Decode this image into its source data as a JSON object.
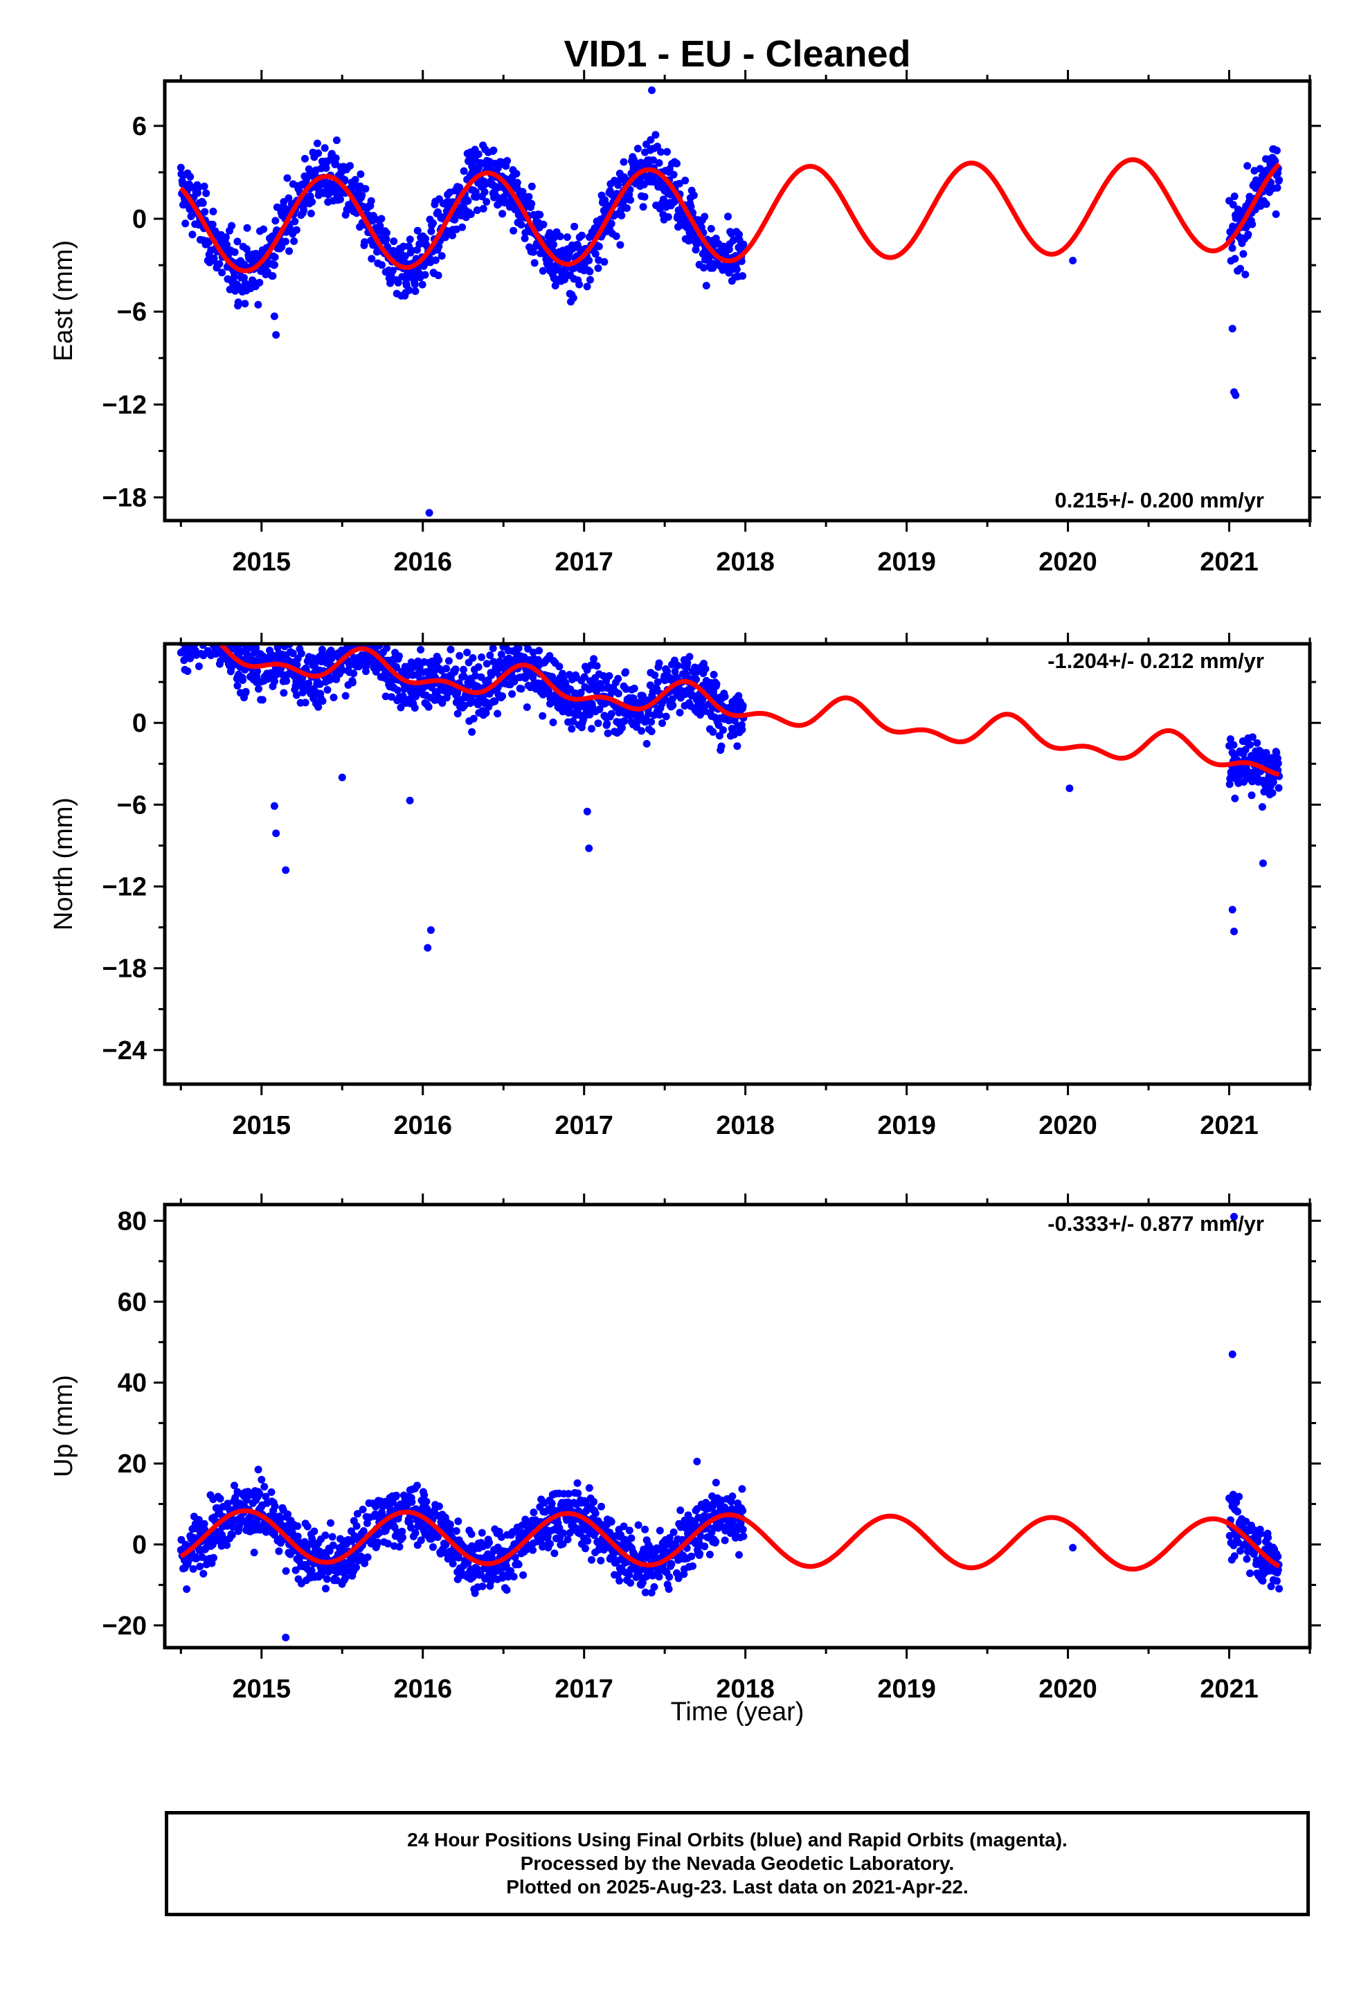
{
  "figure": {
    "title": "VID1  - EU - Cleaned",
    "xlabel": "Time (year)",
    "colors": {
      "data": "#0000ff",
      "model": "#ff0000",
      "frame": "#000000"
    }
  },
  "chart_data": [
    {
      "type": "scatter",
      "panel": "east",
      "ylabel": "East (mm)",
      "annotation": "0.215+/- 0.200 mm/yr",
      "ylim": [
        -19.5,
        8.9
      ],
      "xlim": [
        2014.4,
        2021.5
      ],
      "yticks": [
        -18,
        -12,
        -6,
        0,
        6
      ],
      "xticks": [
        2015,
        2016,
        2017,
        2018,
        2019,
        2020,
        2021
      ],
      "series": [
        {
          "name": "",
          "kind": "points",
          "segments": [
            [
              2014.5,
              2017.99
            ],
            [
              2021.0,
              2021.31
            ]
          ],
          "model": {
            "trend": 0.215,
            "intercept": 0.3,
            "amp1": 3.0,
            "phase1": 2015.15,
            "amp2": 0.0,
            "phase2": 0.0
          },
          "noise": 1.0
        },
        {
          "name": "",
          "kind": "curve",
          "range": [
            2014.5,
            2021.31
          ],
          "model": {
            "trend": 0.215,
            "intercept": 0.3,
            "amp1": 3.0,
            "phase1": 2015.15,
            "amp2": 0.0,
            "phase2": 0.0
          }
        }
      ],
      "outliers": [
        [
          2015.08,
          -6.3
        ],
        [
          2015.09,
          -7.5
        ],
        [
          2016.04,
          -19.0
        ],
        [
          2017.42,
          8.3
        ],
        [
          2020.03,
          -2.7
        ],
        [
          2021.02,
          -7.1
        ],
        [
          2021.03,
          -11.2
        ],
        [
          2021.04,
          -11.4
        ],
        [
          2021.1,
          -3.6
        ]
      ]
    },
    {
      "type": "scatter",
      "panel": "north",
      "ylabel": "North (mm)",
      "annotation": "-1.204+/- 0.212 mm/yr",
      "ylim": [
        -26.5,
        5.8
      ],
      "xlim": [
        2014.4,
        2021.5
      ],
      "yticks": [
        -24,
        -18,
        -12,
        -6,
        0
      ],
      "xticks": [
        2015,
        2016,
        2017,
        2018,
        2019,
        2020,
        2021
      ],
      "series": [
        {
          "name": "",
          "kind": "points",
          "segments": [
            [
              2014.5,
              2017.99
            ],
            [
              2021.0,
              2021.31
            ]
          ],
          "model": {
            "trend": -1.204,
            "intercept": 1.1,
            "amp1": 0.9,
            "phase1": 2015.4,
            "amp2": 0.6,
            "phase2": 2015.5
          },
          "noise": 1.1
        },
        {
          "name": "",
          "kind": "curve",
          "range": [
            2014.5,
            2021.31
          ],
          "model": {
            "trend": -1.204,
            "intercept": 1.1,
            "amp1": 0.9,
            "phase1": 2015.4,
            "amp2": 0.6,
            "phase2": 2015.5
          }
        }
      ],
      "outliers": [
        [
          2015.08,
          -6.1
        ],
        [
          2015.09,
          -8.1
        ],
        [
          2015.15,
          -10.8
        ],
        [
          2015.5,
          -4.0
        ],
        [
          2015.92,
          -5.7
        ],
        [
          2016.03,
          -16.5
        ],
        [
          2016.05,
          -15.2
        ],
        [
          2016.53,
          5.3
        ],
        [
          2017.02,
          -6.5
        ],
        [
          2017.03,
          -9.2
        ],
        [
          2017.46,
          4.1
        ],
        [
          2021.02,
          -13.7
        ],
        [
          2021.03,
          -15.3
        ],
        [
          2021.21,
          -10.3
        ],
        [
          2021.3,
          -2.6
        ],
        [
          2020.01,
          -4.8
        ]
      ]
    },
    {
      "type": "scatter",
      "panel": "up",
      "ylabel": "Up (mm)",
      "annotation": "-0.333+/- 0.877 mm/yr",
      "ylim": [
        -25.5,
        84.0
      ],
      "xlim": [
        2014.4,
        2021.5
      ],
      "yticks": [
        -20,
        0,
        20,
        40,
        60,
        80
      ],
      "xticks": [
        2015,
        2016,
        2017,
        2018,
        2019,
        2020,
        2021
      ],
      "series": [
        {
          "name": "",
          "kind": "points",
          "segments": [
            [
              2014.5,
              2017.99
            ],
            [
              2021.0,
              2021.31
            ]
          ],
          "model": {
            "trend": -0.333,
            "intercept": 1.0,
            "amp1": 6.3,
            "phase1": 2014.65,
            "amp2": 0.0,
            "phase2": 0.0
          },
          "noise": 3.5
        },
        {
          "name": "",
          "kind": "curve",
          "range": [
            2014.5,
            2021.31
          ],
          "model": {
            "trend": -0.333,
            "intercept": 1.0,
            "amp1": 6.3,
            "phase1": 2014.65,
            "amp2": 0.0,
            "phase2": 0.0
          }
        }
      ],
      "outliers": [
        [
          2014.98,
          18.5
        ],
        [
          2015.0,
          16.0
        ],
        [
          2017.7,
          20.5
        ],
        [
          2020.03,
          -0.8
        ],
        [
          2021.02,
          47.0
        ],
        [
          2021.03,
          81.0
        ],
        [
          2015.15,
          -23.0
        ]
      ]
    }
  ],
  "footer": {
    "line1": "24 Hour Positions Using Final Orbits (blue) and Rapid Orbits (magenta).",
    "line2": "Processed by the Nevada Geodetic Laboratory.",
    "line3": "Plotted on 2025-Aug-23. Last data on 2021-Apr-22."
  }
}
